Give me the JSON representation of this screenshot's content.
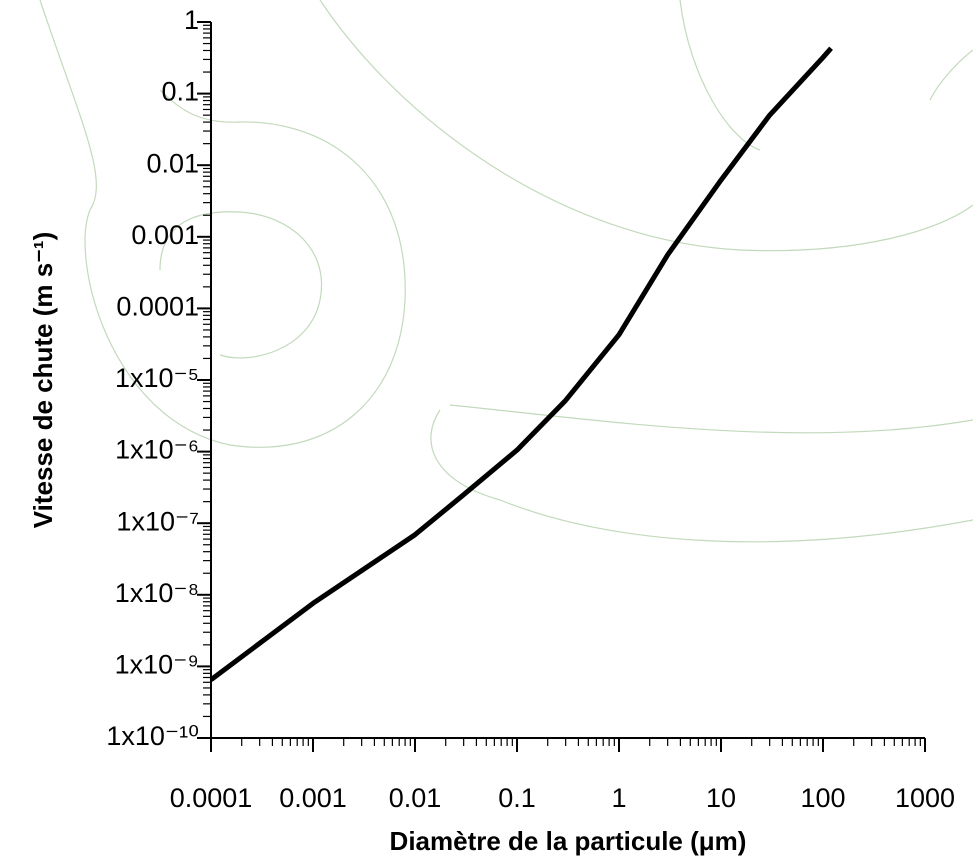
{
  "chart_data": {
    "type": "line",
    "x_label": "Diamètre de la particule (μm)",
    "y_label": "Vitesse de chute (m s⁻¹)",
    "x": [
      0.0001,
      0.001,
      0.01,
      0.03,
      0.1,
      0.3,
      1,
      3,
      10,
      30,
      100,
      120
    ],
    "series": [
      {
        "color": "#000000",
        "values": [
          6.5e-10,
          7.6e-09,
          6.9e-08,
          2.5e-07,
          1.05e-06,
          5.2e-06,
          4.3e-05,
          0.00056,
          0.0062,
          0.05,
          0.32,
          0.43
        ]
      }
    ],
    "x_log": true,
    "y_log": true,
    "xlim": [
      0.0001,
      1000
    ],
    "ylim": [
      1e-10,
      1
    ],
    "xticks": [
      0.0001,
      0.001,
      0.01,
      0.1,
      1,
      10,
      100,
      1000
    ],
    "yticks": [
      {
        "value": 1e-10,
        "label": "1x10⁻¹⁰"
      },
      {
        "value": 1e-09,
        "label": "1x10⁻⁹"
      },
      {
        "value": 1e-08,
        "label": "1x10⁻⁸"
      },
      {
        "value": 1e-07,
        "label": "1x10⁻⁷"
      },
      {
        "value": 1e-06,
        "label": "1x10⁻⁶"
      },
      {
        "value": 1e-05,
        "label": "1x10⁻⁵"
      },
      0.0001,
      0.001,
      0.01,
      0.1,
      1
    ]
  }
}
